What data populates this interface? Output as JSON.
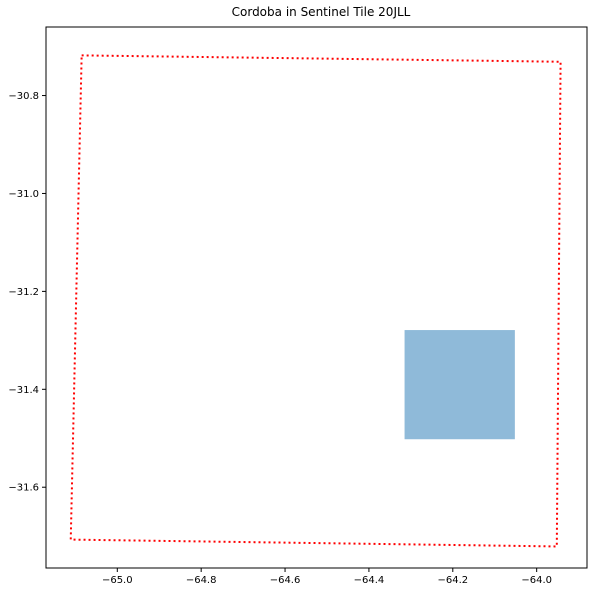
{
  "chart_data": {
    "type": "map",
    "title": "Cordoba in Sentinel Tile 20JLL",
    "xlabel": "",
    "ylabel": "",
    "xlim": [
      -65.17,
      -63.88
    ],
    "ylim": [
      -31.765,
      -30.66
    ],
    "grid": false,
    "xticks": [
      {
        "value": -65.0,
        "label": "−65.0"
      },
      {
        "value": -64.8,
        "label": "−64.8"
      },
      {
        "value": -64.6,
        "label": "−64.6"
      },
      {
        "value": -64.4,
        "label": "−64.4"
      },
      {
        "value": -64.2,
        "label": "−64.2"
      },
      {
        "value": -64.0,
        "label": "−64.0"
      }
    ],
    "yticks": [
      {
        "value": -30.8,
        "label": "−30.8"
      },
      {
        "value": -31.0,
        "label": "−31.0"
      },
      {
        "value": -31.2,
        "label": "−31.2"
      },
      {
        "value": -31.4,
        "label": "−31.4"
      },
      {
        "value": -31.6,
        "label": "−31.6"
      }
    ],
    "tile_outline": {
      "style": "dotted",
      "color": "#ff0000",
      "points": [
        [
          -65.085,
          -30.718
        ],
        [
          -63.943,
          -30.731
        ],
        [
          -63.952,
          -31.721
        ],
        [
          -65.111,
          -31.707
        ]
      ]
    },
    "city_box": {
      "color": "#8fbad9",
      "x0": -64.315,
      "x1": -64.052,
      "y0": -31.502,
      "y1": -31.279
    }
  }
}
